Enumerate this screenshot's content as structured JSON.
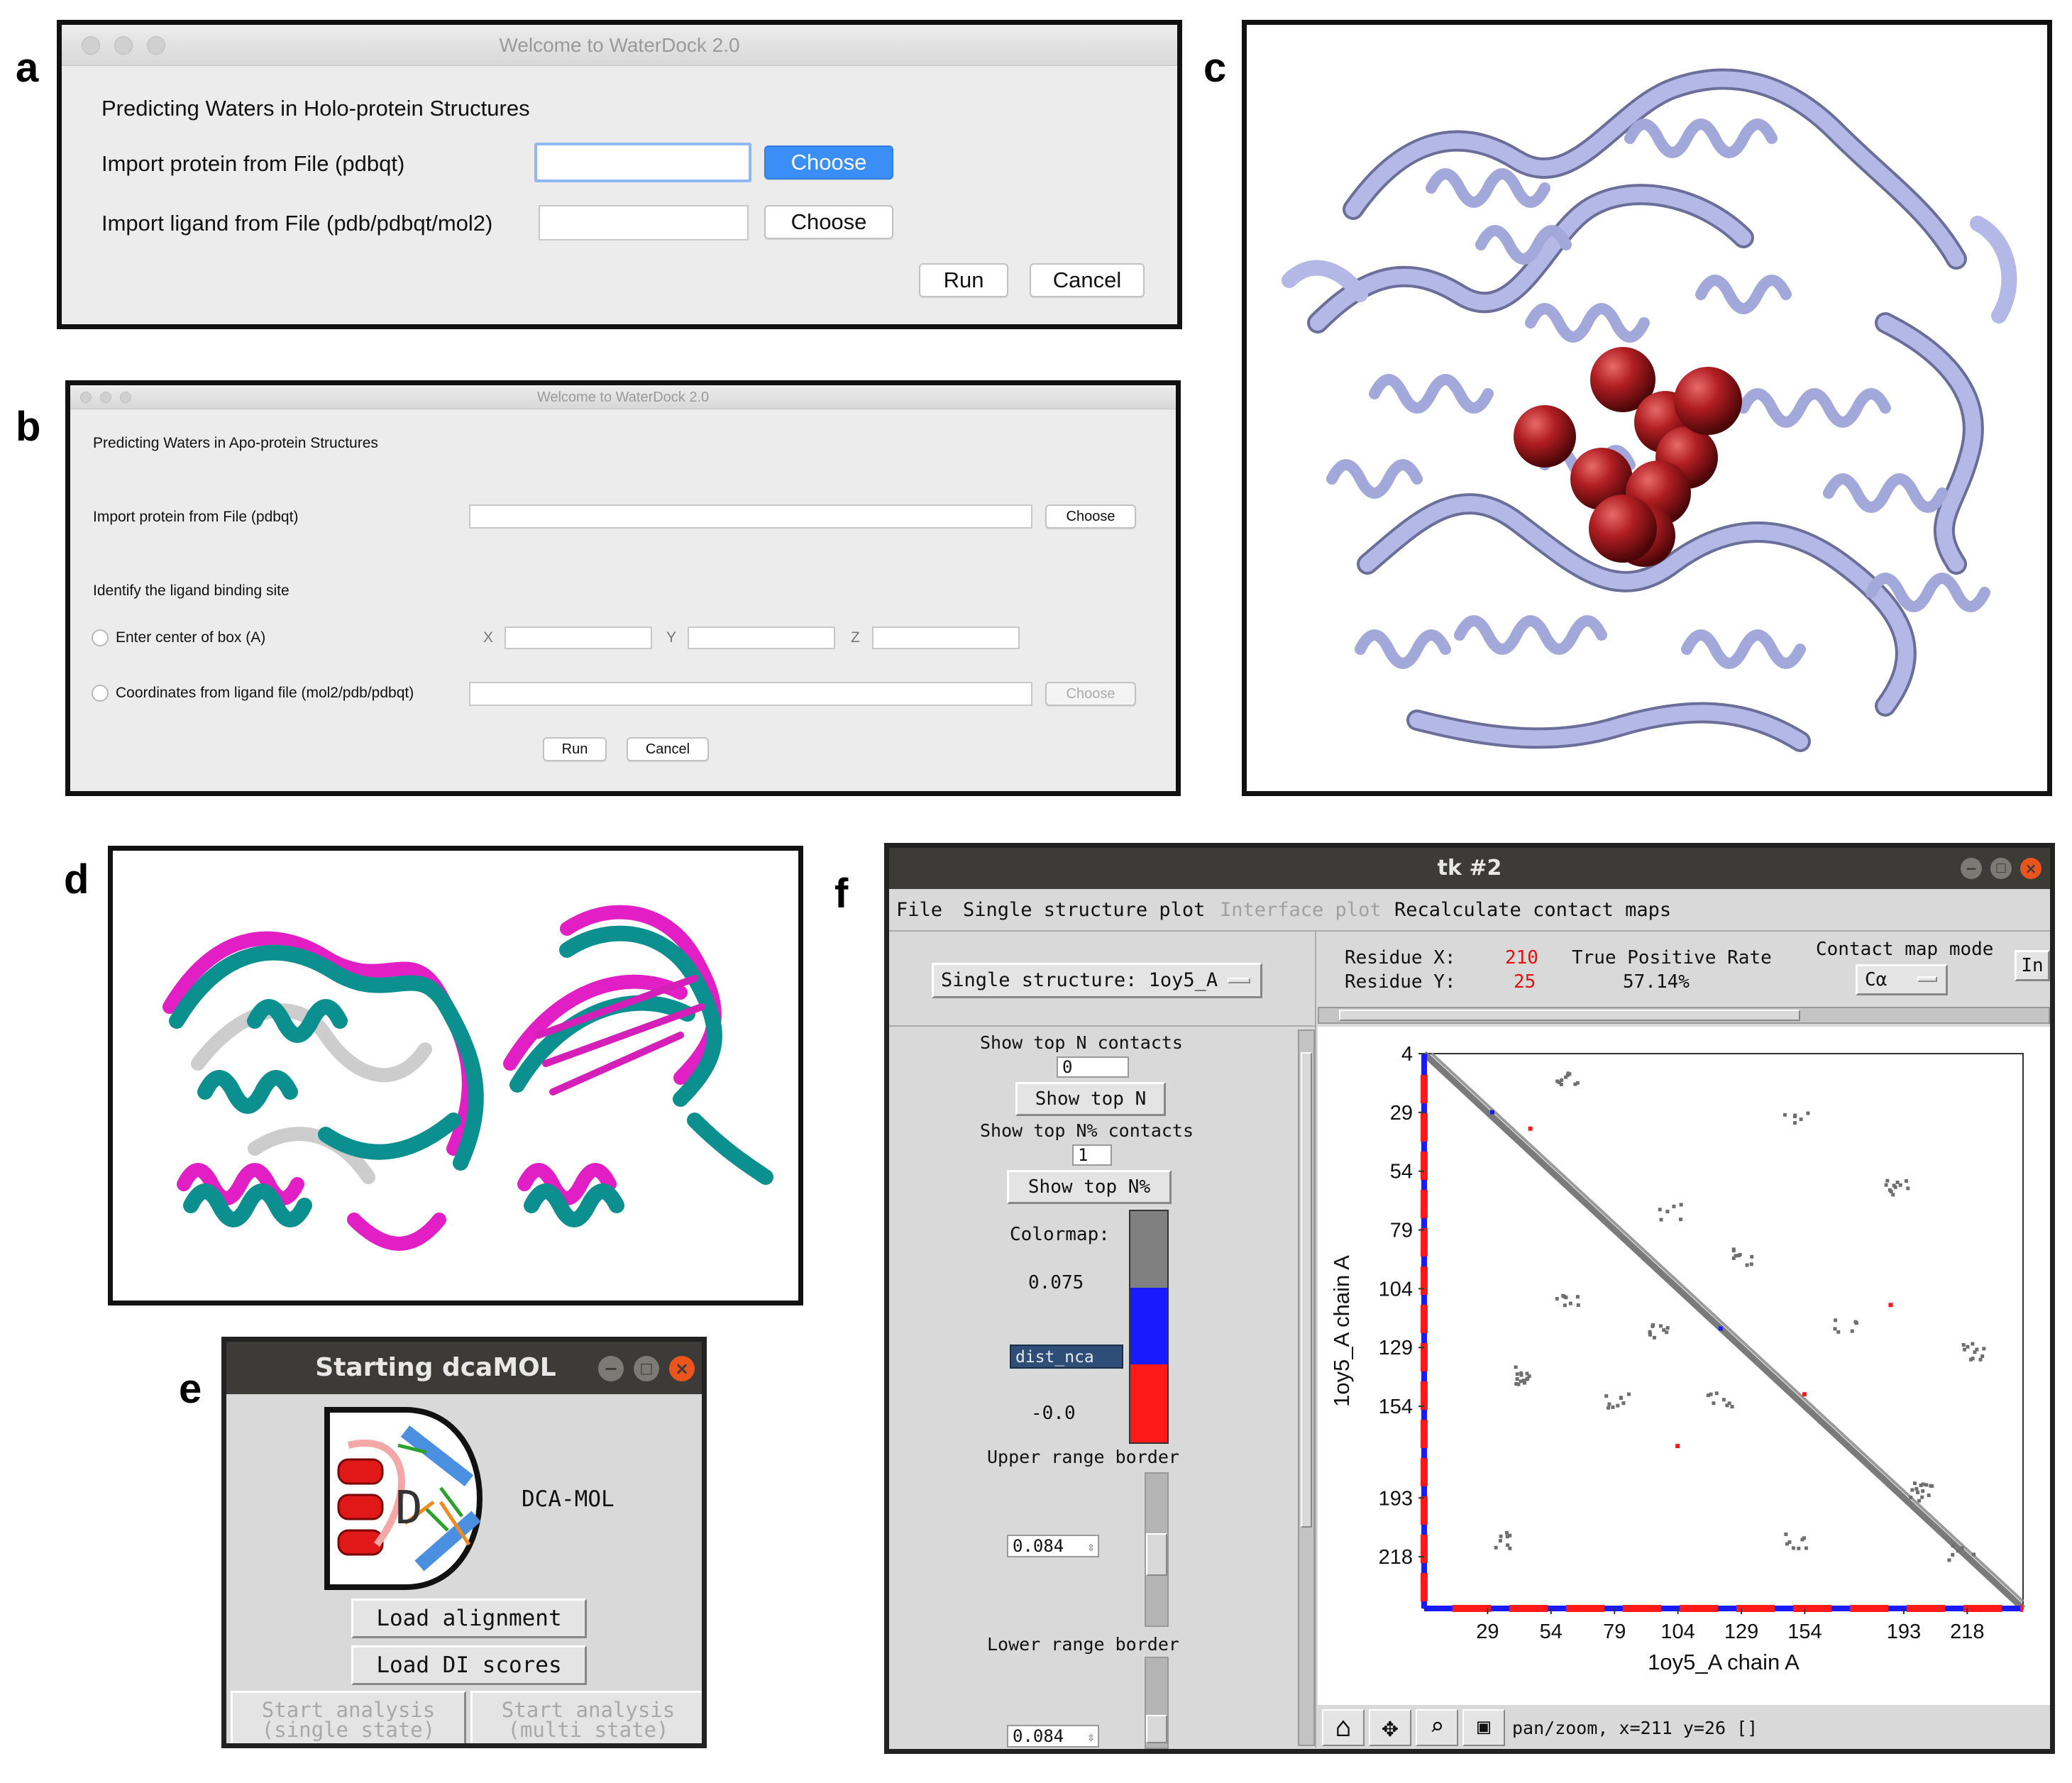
{
  "labels": {
    "a": "a",
    "b": "b",
    "c": "c",
    "d": "d",
    "e": "e",
    "f": "f"
  },
  "panel_a": {
    "window_title": "Welcome to WaterDock 2.0",
    "heading": "Predicting Waters in Holo-protein Structures",
    "protein_label": "Import protein from File (pdbqt)",
    "ligand_label": "Import ligand from File (pdb/pdbqt/mol2)",
    "protein_value": "",
    "ligand_value": "",
    "choose_protein": "Choose",
    "choose_ligand": "Choose",
    "run": "Run",
    "cancel": "Cancel",
    "accent": "#3a8ef5"
  },
  "panel_b": {
    "window_title": "Welcome to WaterDock 2.0",
    "heading": "Predicting Waters in Apo-protein Structures",
    "protein_label": "Import protein from File (pdbqt)",
    "choose_protein": "Choose",
    "site_heading": "Identify the ligand binding site",
    "radio_center": "Enter center of box (A)",
    "x_label": "X",
    "y_label": "Y",
    "z_label": "Z",
    "radio_coords": "Coordinates from ligand file (mol2/pdb/pdbqt)",
    "choose_coords": "Choose",
    "run": "Run",
    "cancel": "Cancel"
  },
  "panel_e": {
    "window_title": "Starting dcaMOL",
    "logo_text": "DCA-MOL",
    "logo_letter": "D",
    "load_alignment": "Load alignment",
    "load_di": "Load DI scores",
    "start_single": "Start analysis\n(single state)",
    "start_multi": "Start analysis\n(multi state)"
  },
  "panel_f": {
    "window_title": "tk #2",
    "menu": [
      "File",
      "Single structure plot",
      "Interface plot",
      "Recalculate contact maps"
    ],
    "structure_select": "Single structure: 1oy5_A",
    "residue_x_label": "Residue X:",
    "residue_x": "210",
    "residue_y_label": "Residue Y:",
    "residue_y": "25",
    "tpr_label": "True Positive Rate",
    "tpr_value": "57.14%",
    "cmap_mode_label": "Contact map mode",
    "cmap_mode_value": "Cα",
    "in_button": "In",
    "show_top_n_label": "Show top N contacts",
    "show_top_n_value": "0",
    "show_top_n_button": "Show top N",
    "show_top_pct_label": "Show top N% contacts",
    "show_top_pct_value": "1",
    "show_top_pct_button": "Show top N%",
    "colormap_label": "Colormap:",
    "cbar_high": "0.075",
    "cbar_low": "-0.0",
    "cbar_select": "dist_nca",
    "upper_label": "Upper range border",
    "upper_value": "0.084",
    "lower_label": "Lower range border",
    "lower_value": "0.084",
    "status": "pan/zoom, x=211 y=26 []",
    "toolbar_icons": [
      "home-icon",
      "move-icon",
      "zoom-icon",
      "save-icon"
    ],
    "colors": {
      "gray": "#808080",
      "blue": "#1a1aff",
      "red": "#ff1a1a",
      "value_red": "#e01010"
    }
  },
  "chart_data": {
    "type": "heatmap",
    "title": "",
    "xlabel": "1oy5_A chain A",
    "ylabel": "1oy5_A chain A",
    "x_ticks": [
      "29",
      "54",
      "79",
      "104",
      "129",
      "154",
      "193",
      "218"
    ],
    "y_ticks": [
      "4",
      "29",
      "54",
      "79",
      "104",
      "129",
      "154",
      "193",
      "218"
    ],
    "legend": "none",
    "grid": false
  }
}
